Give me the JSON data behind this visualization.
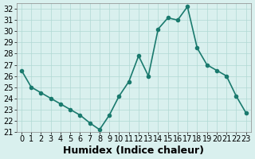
{
  "x": [
    0,
    1,
    2,
    3,
    4,
    5,
    6,
    7,
    8,
    9,
    10,
    11,
    12,
    13,
    14,
    15,
    16,
    17,
    18,
    19,
    20,
    21,
    22,
    23
  ],
  "y": [
    26.5,
    25.0,
    24.5,
    24.0,
    23.5,
    23.0,
    22.5,
    21.8,
    21.2,
    22.5,
    24.2,
    25.5,
    27.8,
    26.0,
    30.2,
    31.2,
    31.0,
    32.2,
    28.5,
    27.0,
    26.5,
    26.0,
    24.2,
    22.7
  ],
  "xlabel": "Humidex (Indice chaleur)",
  "xlim": [
    -0.5,
    23.5
  ],
  "ylim": [
    21,
    32.5
  ],
  "yticks": [
    21,
    22,
    23,
    24,
    25,
    26,
    27,
    28,
    29,
    30,
    31,
    32
  ],
  "xticks": [
    0,
    1,
    2,
    3,
    4,
    5,
    6,
    7,
    8,
    9,
    10,
    11,
    12,
    13,
    14,
    15,
    16,
    17,
    18,
    19,
    20,
    21,
    22,
    23
  ],
  "line_color": "#1a7a6e",
  "bg_color": "#d9f0ee",
  "grid_color": "#b0d8d4",
  "marker": "o",
  "marker_size": 3,
  "line_width": 1.2,
  "xlabel_fontsize": 9,
  "tick_fontsize": 7
}
